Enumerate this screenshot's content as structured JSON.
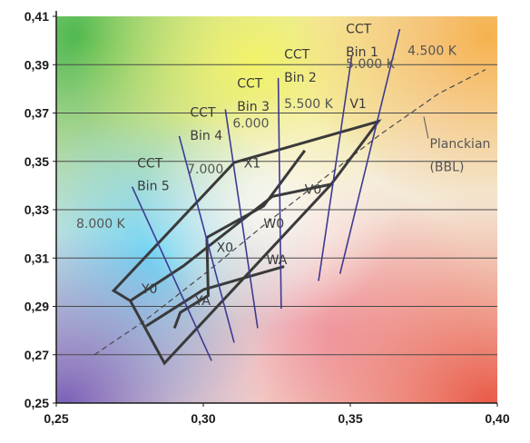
{
  "chart_data": {
    "type": "line",
    "title": "",
    "xlabel": "",
    "ylabel": "",
    "xlim": [
      0.25,
      0.4
    ],
    "ylim": [
      0.25,
      0.41
    ],
    "grid": "horizontal",
    "background": "color-gamut-gradient",
    "x_ticks": [
      "0,25",
      "0,30",
      "0,35",
      "0,40"
    ],
    "y_ticks": [
      "0,25",
      "0,27",
      "0,29",
      "0,31",
      "0,33",
      "0,35",
      "0,37",
      "0,39",
      "0,41"
    ],
    "series": [
      {
        "name": "Planckian (BBL)",
        "style": "dashed",
        "points": [
          [
            0.263,
            0.27
          ],
          [
            0.28,
            0.284
          ],
          [
            0.3,
            0.303
          ],
          [
            0.32,
            0.323
          ],
          [
            0.34,
            0.342
          ],
          [
            0.36,
            0.361
          ],
          [
            0.38,
            0.378
          ],
          [
            0.396,
            0.388
          ]
        ]
      }
    ],
    "bin_regions": {
      "outer": [
        [
          0.2695,
          0.2965
        ],
        [
          0.3105,
          0.3495
        ],
        [
          0.3595,
          0.3665
        ],
        [
          0.3435,
          0.3405
        ],
        [
          0.2868,
          0.2665
        ],
        [
          0.2752,
          0.2923
        ]
      ],
      "inner_lines": [
        [
          [
            0.2752,
            0.2923
          ],
          [
            0.2932,
            0.3067
          ],
          [
            0.3235,
            0.3355
          ],
          [
            0.3435,
            0.3405
          ]
        ],
        [
          [
            0.2805,
            0.2818
          ],
          [
            0.3002,
            0.297
          ],
          [
            0.3275,
            0.3065
          ]
        ],
        [
          [
            0.2902,
            0.281
          ],
          [
            0.2922,
            0.2875
          ],
          [
            0.3017,
            0.2945
          ],
          [
            0.3012,
            0.3185
          ],
          [
            0.3205,
            0.3315
          ],
          [
            0.3345,
            0.3545
          ]
        ]
      ]
    },
    "cct_lines": [
      {
        "label": "CCT Bin 1",
        "lines": [
          "CCT",
          "Bin 1"
        ],
        "temp": "4.500 K",
        "from": [
          0.3465,
          0.3035
        ],
        "to": [
          0.3668,
          0.4047
        ]
      },
      {
        "label": "CCT Bin 2",
        "lines": [
          "CCT",
          "Bin 2"
        ],
        "temp": "5.000 K",
        "from": [
          0.3392,
          0.3005
        ],
        "to": [
          0.3505,
          0.3935
        ]
      },
      {
        "label": "CCT Bin 3",
        "lines": [
          "CCT",
          "Bin 3"
        ],
        "temp": "5.500 K",
        "from": [
          0.3265,
          0.289
        ],
        "to": [
          0.3255,
          0.3845
        ]
      },
      {
        "label": "CCT Bin 4",
        "lines": [
          "CCT",
          "Bin 4"
        ],
        "temp": "6.000",
        "from": [
          0.3185,
          0.281
        ],
        "to": [
          0.3075,
          0.3715
        ]
      },
      {
        "label": "CCT Bin 5",
        "lines": [
          "CCT",
          "Bin 5"
        ],
        "temp": "7.000",
        "from": [
          0.3105,
          0.275
        ],
        "to": [
          0.2918,
          0.3605
        ]
      },
      {
        "label": "",
        "lines": [],
        "temp": "8.000 K",
        "from": [
          0.3028,
          0.2675
        ],
        "to": [
          0.2758,
          0.3395
        ]
      }
    ],
    "annotations": [
      {
        "text": "CCT",
        "x": 0.3485,
        "y": 0.403
      },
      {
        "text": "Bin 1",
        "x": 0.3485,
        "y": 0.3935
      },
      {
        "text": "4.500 K",
        "x": 0.3695,
        "y": 0.394
      },
      {
        "text": "CCT",
        "x": 0.3275,
        "y": 0.3925
      },
      {
        "text": "Bin 2",
        "x": 0.3275,
        "y": 0.383
      },
      {
        "text": "5.000 K",
        "x": 0.3485,
        "y": 0.3885
      },
      {
        "text": "CCT",
        "x": 0.3115,
        "y": 0.3805
      },
      {
        "text": "Bin 3",
        "x": 0.3115,
        "y": 0.371
      },
      {
        "text": "5.500 K",
        "x": 0.3275,
        "y": 0.372
      },
      {
        "text": "V1",
        "x": 0.3498,
        "y": 0.372
      },
      {
        "text": "CCT",
        "x": 0.2955,
        "y": 0.3685
      },
      {
        "text": "Bin 4",
        "x": 0.2955,
        "y": 0.359
      },
      {
        "text": "6.000",
        "x": 0.31,
        "y": 0.364
      },
      {
        "text": "CCT",
        "x": 0.2775,
        "y": 0.3475
      },
      {
        "text": "Bin 5",
        "x": 0.2775,
        "y": 0.338
      },
      {
        "text": "7.000",
        "x": 0.2945,
        "y": 0.345
      },
      {
        "text": "X1",
        "x": 0.3138,
        "y": 0.3475
      },
      {
        "text": "8.000 K",
        "x": 0.2568,
        "y": 0.3225
      },
      {
        "text": "V0",
        "x": 0.3345,
        "y": 0.3365
      },
      {
        "text": "W0",
        "x": 0.3205,
        "y": 0.3225
      },
      {
        "text": "X0",
        "x": 0.3045,
        "y": 0.3125
      },
      {
        "text": "WA",
        "x": 0.3215,
        "y": 0.3075
      },
      {
        "text": "Y0",
        "x": 0.279,
        "y": 0.2955
      },
      {
        "text": "YA",
        "x": 0.2972,
        "y": 0.2905
      },
      {
        "text": "Planckian",
        "x": 0.377,
        "y": 0.3555
      },
      {
        "text": "(BBL)",
        "x": 0.377,
        "y": 0.346
      }
    ],
    "planckian_marker": {
      "from": [
        0.3765,
        0.3595
      ],
      "to": [
        0.375,
        0.3685
      ]
    }
  }
}
